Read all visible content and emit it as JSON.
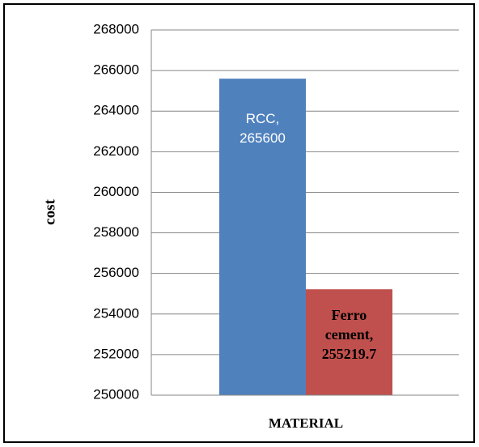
{
  "chart_data": {
    "type": "bar",
    "x_label": "MATERIAL",
    "y_label": "cost",
    "values": [
      265600,
      255219.7
    ],
    "value_labels": [
      "RCC, 265600",
      "Ferro cement, 255219.7"
    ],
    "colors": [
      "#4f81bd",
      "#c0504d"
    ],
    "ylim": [
      250000,
      268000
    ],
    "yticks": [
      250000,
      252000,
      254000,
      256000,
      258000,
      260000,
      262000,
      264000,
      266000,
      268000
    ],
    "grid": true
  }
}
